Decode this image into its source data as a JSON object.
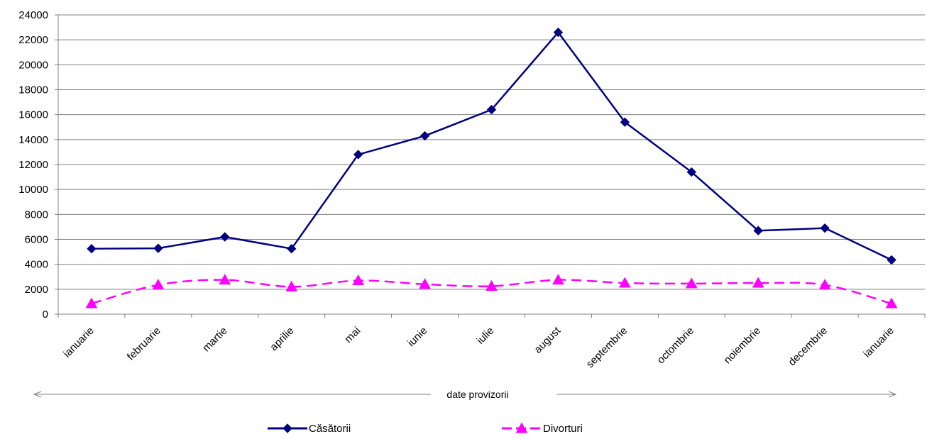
{
  "chart_data": {
    "type": "line",
    "title": "",
    "xlabel": "",
    "ylabel": "",
    "categories": [
      "ianuarie",
      "februarie",
      "martie",
      "aprilie",
      "mai",
      "iunie",
      "iulie",
      "august",
      "septembrie",
      "octombrie",
      "noiembrie",
      "decembrie",
      "ianuarie"
    ],
    "ylim": [
      0,
      24000
    ],
    "yticks": [
      "0",
      "2000",
      "4000",
      "6000",
      "8000",
      "10000",
      "12000",
      "14000",
      "16000",
      "18000",
      "20000",
      "22000",
      "24000"
    ],
    "grid": true,
    "legend_position": "bottom",
    "series": [
      {
        "name": "Căsătorii",
        "color": "#000080",
        "marker": "diamond",
        "line_style": "solid",
        "values": [
          5250,
          5280,
          6200,
          5250,
          12800,
          14300,
          16400,
          22600,
          15400,
          11400,
          6700,
          6900,
          4350
        ]
      },
      {
        "name": "Divorturi",
        "color": "#ff00ff",
        "marker": "triangle",
        "line_style": "dashed",
        "values": [
          850,
          2350,
          2750,
          2200,
          2700,
          2400,
          2250,
          2750,
          2500,
          2450,
          2500,
          2350,
          850
        ]
      }
    ],
    "annotation": "date provizorii"
  }
}
